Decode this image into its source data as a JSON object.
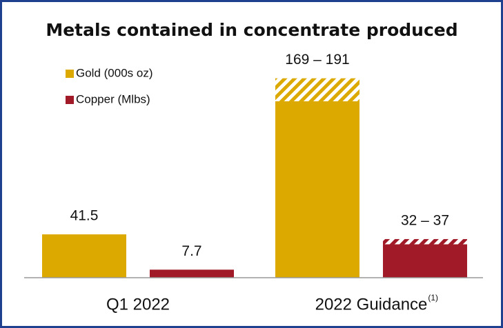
{
  "chart_data": {
    "type": "bar",
    "title": "Metals contained in concentrate produced",
    "categories": [
      "Q1 2022",
      "2022 Guidance"
    ],
    "category_notes": [
      null,
      "(1)"
    ],
    "series": [
      {
        "name": "Gold (000s oz)",
        "color": "#dba900",
        "values": [
          41.5,
          169
        ],
        "highs": [
          null,
          191
        ],
        "value_labels": [
          "41.5",
          "169 – 191"
        ]
      },
      {
        "name": "Copper (Mlbs)",
        "color": "#a11a27",
        "values": [
          7.7,
          32
        ],
        "highs": [
          null,
          37
        ],
        "value_labels": [
          "7.7",
          "32 – 37"
        ]
      }
    ],
    "ylim": [
      0,
      200
    ]
  }
}
